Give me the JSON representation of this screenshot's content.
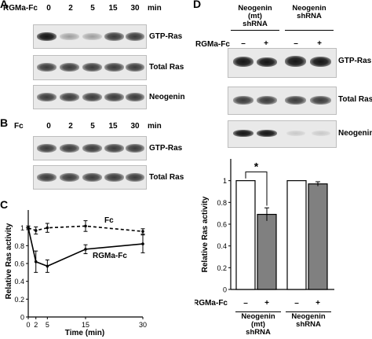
{
  "panel_a": {
    "letter": "A",
    "treatment_label": "RGMa-Fc",
    "time_points": [
      "0",
      "2",
      "5",
      "15",
      "30"
    ],
    "unit": "min",
    "blot_labels": [
      "GTP-Ras",
      "Total Ras",
      "Neogenin"
    ]
  },
  "panel_b": {
    "letter": "B",
    "treatment_label": "Fc",
    "time_points": [
      "0",
      "2",
      "5",
      "15",
      "30"
    ],
    "unit": "min",
    "blot_labels": [
      "GTP-Ras",
      "Total Ras"
    ]
  },
  "panel_c": {
    "letter": "C",
    "chart_data": {
      "type": "line",
      "xlabel": "Time (min)",
      "ylabel": "Relative Ras activity",
      "x_ticks": [
        "0",
        "2",
        "5",
        "15",
        "30"
      ],
      "y_ticks": [
        "0",
        "0.2",
        "0.4",
        "0.6",
        "0.8",
        "1"
      ],
      "xlim": [
        0,
        30
      ],
      "ylim": [
        0,
        1.2
      ],
      "series": [
        {
          "name": "Fc",
          "style": "dashed",
          "x": [
            0,
            2,
            5,
            15,
            30
          ],
          "y": [
            1.0,
            0.97,
            1.0,
            1.02,
            0.96
          ],
          "err": [
            0.02,
            0.04,
            0.05,
            0.06,
            0.03
          ]
        },
        {
          "name": "RGMa-Fc",
          "style": "solid",
          "x": [
            0,
            2,
            5,
            15,
            30
          ],
          "y": [
            1.0,
            0.62,
            0.57,
            0.76,
            0.82
          ],
          "err": [
            0.02,
            0.12,
            0.07,
            0.05,
            0.1
          ]
        }
      ]
    }
  },
  "panel_d": {
    "letter": "D",
    "group_headers": [
      "Neogenin (mt) shRNA",
      "Neogenin shRNA"
    ],
    "group_header_lines": [
      [
        "Neogenin",
        "(mt)",
        "shRNA"
      ],
      [
        "Neogenin",
        "shRNA"
      ]
    ],
    "treatment_label": "RGMa-Fc",
    "treatment_signs": [
      "–",
      "+",
      "–",
      "+"
    ],
    "blot_labels": [
      "GTP-Ras",
      "Total Ras",
      "Neogenin"
    ],
    "chart_data": {
      "type": "bar",
      "categories": [
        "Neogenin (mt) shRNA –",
        "Neogenin (mt) shRNA +",
        "Neogenin shRNA –",
        "Neogenin shRNA +"
      ],
      "values": [
        1.0,
        0.69,
        1.0,
        0.97
      ],
      "errors": [
        0.0,
        0.06,
        0.0,
        0.02
      ],
      "bar_colors": [
        "#ffffff",
        "#808080",
        "#ffffff",
        "#808080"
      ],
      "ylabel": "Relative Ras activity",
      "y_ticks": [
        "0",
        "0.2",
        "0.4",
        "0.6",
        "0.8",
        "1"
      ],
      "ylim": [
        0,
        1.2
      ],
      "significance": "*",
      "x_signs_label": "RGMa-Fc",
      "x_signs": [
        "–",
        "+",
        "–",
        "+"
      ],
      "group_labels": [
        [
          "Neogenin",
          "(mt)",
          "shRNA"
        ],
        [
          "Neogenin",
          "shRNA"
        ]
      ]
    }
  }
}
